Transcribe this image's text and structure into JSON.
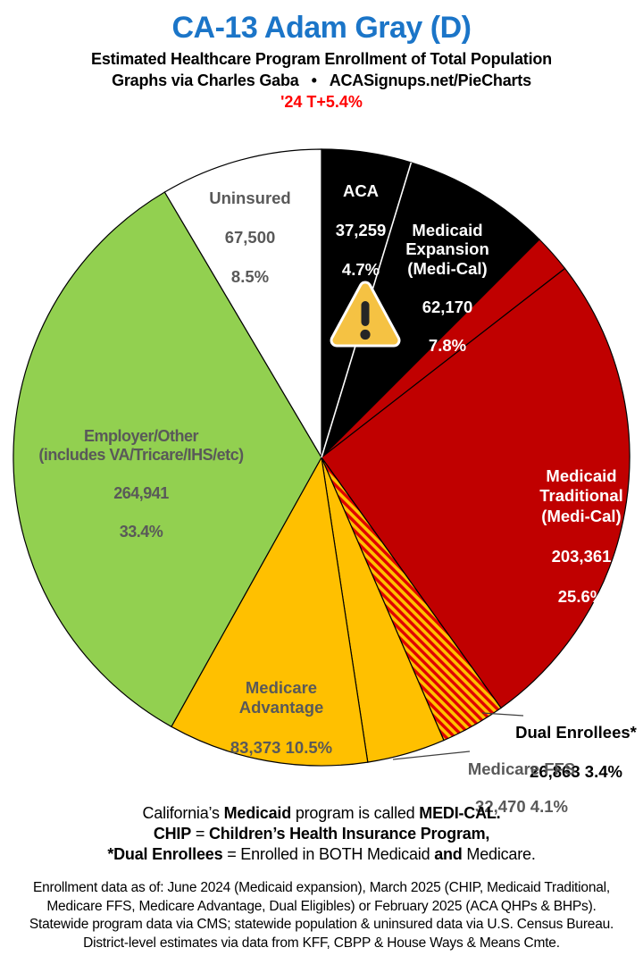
{
  "header": {
    "title": "CA-13 Adam Gray (D)",
    "subtitle": "Estimated Healthcare Program Enrollment of Total Population",
    "credit": {
      "left": "Graphs via Charles Gaba",
      "bullet": "•",
      "right": "ACASignups.net/PieCharts"
    },
    "trend": "'24 T+5.4%",
    "colors": {
      "title": "#1B75C8",
      "trend": "#FF0000"
    }
  },
  "chart_data": {
    "type": "pie",
    "title": "Estimated Healthcare Program Enrollment of Total Population",
    "district": "CA-13 Adam Gray (D)",
    "start_angle_deg": 0,
    "direction": "clockwise",
    "slices": [
      {
        "name": "ACA",
        "label_lines": "ACA",
        "value": 37259,
        "value_text": "37,259",
        "pct": 4.7,
        "pct_text": "4.7%",
        "share": 4.7,
        "fill": "#000000",
        "text_color": "#FFFFFF"
      },
      {
        "name": "Medicaid Expansion (Medi-Cal)",
        "label_lines": "Medicaid\nExpansion\n(Medi-Cal)",
        "value": 62170,
        "value_text": "62,170",
        "pct": 7.8,
        "pct_text": "7.8%",
        "share": 7.8,
        "fill": "#000000",
        "text_color": "#FFFFFF"
      },
      {
        "name": "CHIP (unlabeled sliver)",
        "label_lines": "",
        "value": null,
        "value_text": "",
        "pct": null,
        "pct_text": "",
        "share": 2.0,
        "fill": "#C00000",
        "text_color": ""
      },
      {
        "name": "Medicaid Traditional (Medi-Cal)",
        "label_lines": "Medicaid\nTraditional\n(Medi-Cal)",
        "value": 203361,
        "value_text": "203,361",
        "pct": 25.6,
        "pct_text": "25.6%",
        "share": 25.6,
        "fill": "#C00000",
        "text_color": "#FFFFFF"
      },
      {
        "name": "Dual Enrollees*",
        "label_lines": "Dual Enrollees*",
        "value": 26863,
        "value_text": "26,863",
        "pct": 3.4,
        "pct_text": "3.4%",
        "share": 3.4,
        "fill": "hatch",
        "text_color": "#000000"
      },
      {
        "name": "Medicare FFS",
        "label_lines": "Medicare FFS",
        "value": 32470,
        "value_text": "32,470",
        "pct": 4.1,
        "pct_text": "4.1%",
        "share": 4.1,
        "fill": "#FFC000",
        "text_color": "#595959"
      },
      {
        "name": "Medicare Advantage",
        "label_lines": "Medicare\nAdvantage",
        "value": 83373,
        "value_text": "83,373",
        "pct": 10.5,
        "pct_text": "10.5%",
        "share": 10.5,
        "fill": "#FFC000",
        "text_color": "#595959"
      },
      {
        "name": "Employer/Other (includes VA/Tricare/IHS/etc)",
        "label_lines": "Employer/Other\n(includes VA/Tricare/IHS/etc)",
        "value": 264941,
        "value_text": "264,941",
        "pct": 33.4,
        "pct_text": "33.4%",
        "share": 33.4,
        "fill": "#92D050",
        "text_color": "#595959"
      },
      {
        "name": "Uninsured",
        "label_lines": "Uninsured",
        "value": 67500,
        "value_text": "67,500",
        "pct": 8.5,
        "pct_text": "8.5%",
        "share": 8.5,
        "fill": "#FFFFFF",
        "text_color": "#595959"
      }
    ],
    "palette": {
      "black": "#000000",
      "dark_red": "#C00000",
      "gold": "#FFC000",
      "green": "#92D050",
      "white": "#FFFFFF",
      "hatch_stripe": "#E00000",
      "label_gray": "#595959"
    },
    "legend_position": "labels-on-slices",
    "grid": false
  },
  "footer": {
    "line1": [
      {
        "t": "California’s "
      },
      {
        "t": "Medicaid"
      },
      {
        "t": " program is called "
      },
      {
        "t": "MEDI-CAL."
      }
    ],
    "line2": [
      {
        "t": "CHIP"
      },
      {
        "t": " = "
      },
      {
        "t": "Children’s Health Insurance Program,"
      }
    ],
    "line3": [
      {
        "t": "*Dual Enrollees"
      },
      {
        "t": " = Enrolled in BOTH Medicaid "
      },
      {
        "t": "and"
      },
      {
        "t": " Medicare."
      }
    ],
    "disclaimer": [
      "Enrollment data as of: June 2024 (Medicaid expansion), March 2025 (CHIP, Medicaid Traditional,",
      "Medicare FFS, Medicare Advantage, Dual Eligibles) or February 2025 (ACA QHPs & BHPs).",
      "Statewide program data via CMS; statewide population & uninsured data via U.S. Census Bureau.",
      "District-level estimates via data from KFF, CBPP & House Ways & Means Cmte."
    ]
  }
}
